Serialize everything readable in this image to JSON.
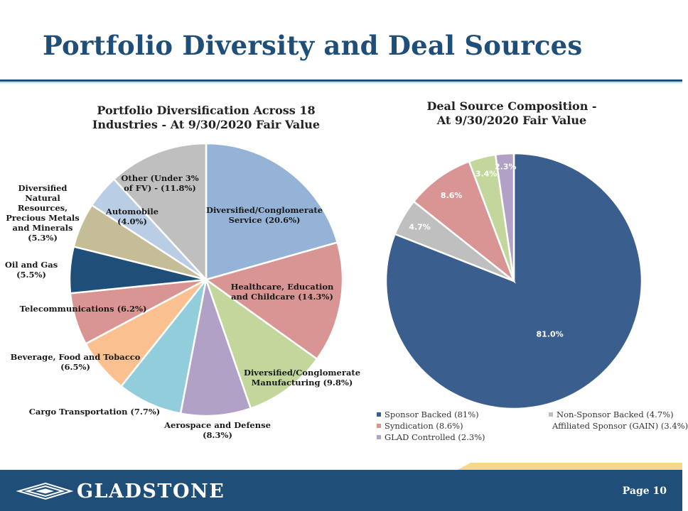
{
  "page": {
    "title": "Portfolio Diversity and Deal Sources",
    "page_number": "Page 10",
    "logo_text": "GLADSTONE",
    "colors": {
      "title": "#1f4e79",
      "footer": "#1f4e79",
      "accent": "#f5d98b"
    }
  },
  "chart_data": [
    {
      "type": "pie",
      "title": "Portfolio Diversification Across 18 Industries - At 9/30/2020 Fair Value",
      "title_lines": [
        "Portfolio Diversification Across 18",
        "Industries - At 9/30/2020 Fair Value"
      ],
      "unit": "%",
      "slices": [
        {
          "label": "Diversified/Conglomerate Service (20.6%)",
          "lines": [
            "Diversified/Conglomerate",
            "Service (20.6%)"
          ],
          "value": 20.6,
          "color": "#95b3d7"
        },
        {
          "label": "Healthcare, Education and Childcare (14.3%)",
          "lines": [
            "Healthcare, Education",
            "and Childcare (14.3%)"
          ],
          "value": 14.3,
          "color": "#d99594"
        },
        {
          "label": "Diversified/Conglomerate Manufacturing (9.8%)",
          "lines": [
            "Diversified/Conglomerate",
            "Manufacturing (9.8%)"
          ],
          "value": 9.8,
          "color": "#c3d69b"
        },
        {
          "label": "Aerospace and Defense (8.3%)",
          "lines": [
            "Aerospace and Defense",
            "(8.3%)"
          ],
          "value": 8.3,
          "color": "#b2a1c7"
        },
        {
          "label": "Cargo Transportation (7.7%)",
          "lines": [
            "Cargo Transportation (7.7%)"
          ],
          "value": 7.7,
          "color": "#92cddc"
        },
        {
          "label": "Beverage, Food and Tobacco (6.5%)",
          "lines": [
            "Beverage, Food and Tobacco",
            "(6.5%)"
          ],
          "value": 6.5,
          "color": "#fac090"
        },
        {
          "label": "Telecommunications (6.2%)",
          "lines": [
            "Telecommunications (6.2%)"
          ],
          "value": 6.2,
          "color": "#d99594"
        },
        {
          "label": "Oil and Gas (5.5%)",
          "lines": [
            "Oil and Gas",
            "(5.5%)"
          ],
          "value": 5.5,
          "color": "#1f4e79"
        },
        {
          "label": "Diversified Natural Resources, Precious Metals and Minerals (5.3%)",
          "lines": [
            "Diversified",
            "Natural",
            "Resources,",
            "Precious Metals",
            "and Minerals",
            "(5.3%)"
          ],
          "value": 5.3,
          "color": "#c4bd97"
        },
        {
          "label": "Automobile (4.0%)",
          "lines": [
            "Automobile",
            "(4.0%)"
          ],
          "value": 4.0,
          "color": "#b9cde5"
        },
        {
          "label": "Other (Under 3% of FV) - (11.8%)",
          "lines": [
            "Other (Under 3%",
            "of FV) - (11.8%)"
          ],
          "value": 11.8,
          "color": "#bfbfbf"
        }
      ]
    },
    {
      "type": "pie",
      "title": "Deal Source Composition - At 9/30/2020 Fair Value",
      "title_lines": [
        "Deal Source Composition -",
        "At 9/30/2020 Fair Value"
      ],
      "unit": "%",
      "legend_position": "bottom",
      "slices": [
        {
          "name": "Sponsor Backed (81%)",
          "value": 81.0,
          "data_label": "81.0%",
          "color": "#3a5f8f"
        },
        {
          "name": "Non-Sponsor Backed (4.7%)",
          "value": 4.7,
          "data_label": "4.7%",
          "color": "#bfbfbf"
        },
        {
          "name": "Syndication (8.6%)",
          "value": 8.6,
          "data_label": "8.6%",
          "color": "#d99594"
        },
        {
          "name": "Affiliated Sponsor (GAIN) (3.4%)",
          "value": 3.4,
          "data_label": "3.4%",
          "color": "#c3d69b"
        },
        {
          "name": "GLAD Controlled (2.3%)",
          "value": 2.3,
          "data_label": "2.3%",
          "color": "#b2a1c7"
        }
      ]
    }
  ]
}
